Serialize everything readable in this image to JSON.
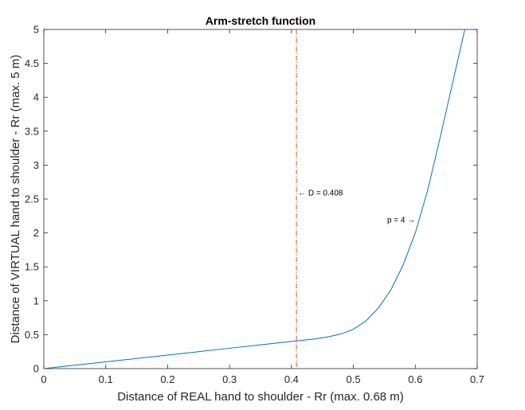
{
  "chart_data": {
    "type": "line",
    "title": "Arm-stretch function",
    "xlabel": "Distance of REAL hand to shoulder - Rr (max. 0.68 m)",
    "ylabel": "Distance of VIRTUAL hand to shoulder - Rr (max. 5 m)",
    "xlim": [
      0,
      0.7
    ],
    "ylim": [
      0,
      5
    ],
    "xticks": [
      "0",
      "0.1",
      "0.2",
      "0.3",
      "0.4",
      "0.5",
      "0.6",
      "0.7"
    ],
    "yticks": [
      "0",
      "0.5",
      "1",
      "1.5",
      "2",
      "2.5",
      "3",
      "3.5",
      "4",
      "4.5",
      "5"
    ],
    "grid": false,
    "series": [
      {
        "color": "#0072bd",
        "x": [
          0,
          0.05,
          0.1,
          0.15,
          0.2,
          0.25,
          0.3,
          0.35,
          0.4,
          0.408,
          0.42,
          0.44,
          0.46,
          0.48,
          0.5,
          0.52,
          0.54,
          0.56,
          0.58,
          0.6,
          0.62,
          0.64,
          0.66,
          0.68
        ],
        "y": [
          0,
          0.05,
          0.1,
          0.15,
          0.2,
          0.25,
          0.3,
          0.35,
          0.4,
          0.408,
          0.42,
          0.44,
          0.47,
          0.51,
          0.58,
          0.7,
          0.89,
          1.15,
          1.52,
          2.0,
          2.63,
          3.4,
          4.2,
          5.0
        ]
      }
    ],
    "vline": {
      "x": 0.408,
      "color": "#d95319"
    },
    "annotations": [
      {
        "text": "← D = 0.408"
      },
      {
        "text": "p =  4 →"
      }
    ]
  }
}
